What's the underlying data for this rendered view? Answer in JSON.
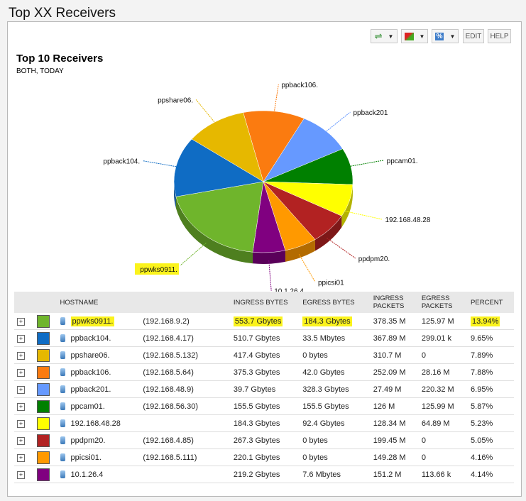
{
  "window_title": "Top XX Receivers",
  "toolbar": {
    "edit": "EDIT",
    "help": "HELP",
    "percent_icon": "%"
  },
  "report": {
    "title": "Top 10 Receivers",
    "subtitle": "BOTH, TODAY"
  },
  "columns": [
    "HOSTNAME",
    "INGRESS BYTES",
    "EGRESS BYTES",
    "INGRESS PACKETS",
    "EGRESS PACKETS",
    "PERCENT"
  ],
  "rows": [
    {
      "host": "ppwks0911.",
      "ip": "(192.168.9.2)",
      "in_b": "553.7 Gbytes",
      "out_b": "184.3 Gbytes",
      "in_p": "378.35 M",
      "out_p": "125.97 M",
      "pct": "13.94%",
      "color": "#6fb52c",
      "highlight": true
    },
    {
      "host": "ppback104.",
      "ip": "(192.168.4.17)",
      "in_b": "510.7 Gbytes",
      "out_b": "33.5 Mbytes",
      "in_p": "367.89 M",
      "out_p": "299.01 k",
      "pct": "9.65%",
      "color": "#0f6cc4"
    },
    {
      "host": "ppshare06.",
      "ip": "(192.168.5.132)",
      "in_b": "417.4 Gbytes",
      "out_b": "0 bytes",
      "in_p": "310.7 M",
      "out_p": "0",
      "pct": "7.89%",
      "color": "#e6b800"
    },
    {
      "host": "ppback106.",
      "ip": "(192.168.5.64)",
      "in_b": "375.3 Gbytes",
      "out_b": "42.0 Gbytes",
      "in_p": "252.09 M",
      "out_p": "28.16 M",
      "pct": "7.88%",
      "color": "#fb7b10"
    },
    {
      "host": "ppback201.",
      "ip": "(192.168.48.9)",
      "in_b": "39.7 Gbytes",
      "out_b": "328.3 Gbytes",
      "in_p": "27.49 M",
      "out_p": "220.32 M",
      "pct": "6.95%",
      "color": "#6699ff"
    },
    {
      "host": "ppcam01.",
      "ip": "(192.168.56.30)",
      "in_b": "155.5 Gbytes",
      "out_b": "155.5 Gbytes",
      "in_p": "126 M",
      "out_p": "125.99 M",
      "pct": "5.87%",
      "color": "#008000"
    },
    {
      "host": "192.168.48.28",
      "ip": "",
      "in_b": "184.3 Gbytes",
      "out_b": "92.4 Gbytes",
      "in_p": "128.34 M",
      "out_p": "64.89 M",
      "pct": "5.23%",
      "color": "#ffff00"
    },
    {
      "host": "ppdpm20.",
      "ip": "(192.168.4.85)",
      "in_b": "267.3 Gbytes",
      "out_b": "0 bytes",
      "in_p": "199.45 M",
      "out_p": "0",
      "pct": "5.05%",
      "color": "#b22222"
    },
    {
      "host": "ppicsi01.",
      "ip": "(192.168.5.111)",
      "in_b": "220.1 Gbytes",
      "out_b": "0 bytes",
      "in_p": "149.28 M",
      "out_p": "0",
      "pct": "4.16%",
      "color": "#ff9900"
    },
    {
      "host": "10.1.26.4",
      "ip": "",
      "in_b": "219.2 Gbytes",
      "out_b": "7.6 Mbytes",
      "in_p": "151.2 M",
      "out_p": "113.66 k",
      "pct": "4.14%",
      "color": "#800080"
    }
  ],
  "chart_data": {
    "type": "pie",
    "title": "Top 10 Receivers",
    "labels": [
      "ppback106.",
      "ppback201",
      "ppcam01.",
      "192.168.48.28",
      "ppdpm20.",
      "ppicsi01",
      "10.1.26.4",
      "ppwks0911.",
      "ppback104.",
      "ppshare06."
    ],
    "values": [
      7.88,
      6.95,
      5.87,
      5.23,
      5.05,
      4.16,
      4.14,
      13.94,
      9.65,
      7.89
    ],
    "colors": [
      "#fb7b10",
      "#6699ff",
      "#008000",
      "#ffff00",
      "#b22222",
      "#ff9900",
      "#800080",
      "#6fb52c",
      "#0f6cc4",
      "#e6b800"
    ],
    "highlighted": "ppwks0911."
  }
}
